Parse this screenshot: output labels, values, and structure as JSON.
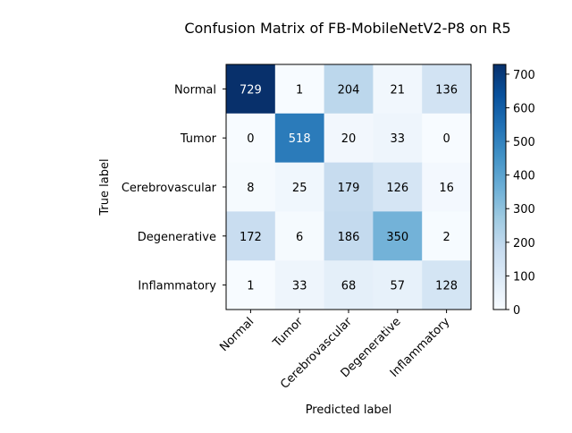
{
  "chart_data": {
    "type": "heatmap",
    "title": "Confusion Matrix of FB-MobileNetV2-P8 on R5",
    "xlabel": "Predicted label",
    "ylabel": "True label",
    "x_categories": [
      "Normal",
      "Tumor",
      "Cerebrovascular",
      "Degenerative",
      "Inflammatory"
    ],
    "y_categories": [
      "Normal",
      "Tumor",
      "Cerebrovascular",
      "Degenerative",
      "Inflammatory"
    ],
    "values": [
      [
        729,
        1,
        204,
        21,
        136
      ],
      [
        0,
        518,
        20,
        33,
        0
      ],
      [
        8,
        25,
        179,
        126,
        16
      ],
      [
        172,
        6,
        186,
        350,
        2
      ],
      [
        1,
        33,
        68,
        57,
        128
      ]
    ],
    "colormap": "Blues",
    "colorbar": {
      "range": [
        0,
        729
      ],
      "ticks": [
        0,
        100,
        200,
        300,
        400,
        500,
        600,
        700
      ]
    },
    "grid": false
  }
}
